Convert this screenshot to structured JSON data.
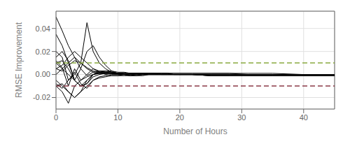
{
  "chart_data": {
    "type": "line",
    "xlabel": "Number of Hours",
    "ylabel": "RMSE Improvement",
    "xlim": [
      0,
      45
    ],
    "ylim": [
      -0.03,
      0.055
    ],
    "xticks": [
      0,
      10,
      20,
      30,
      40
    ],
    "yticks": [
      -0.02,
      {
        "value": 0,
        "label": "0.00"
      },
      0.02,
      0.04
    ],
    "grid": true,
    "hlines": [
      {
        "value": 0.01,
        "color": "#8aab40",
        "line_style": "dashed"
      },
      {
        "value": -0.01,
        "color": "#8b3a48",
        "line_style": "dashed"
      }
    ],
    "x": [
      0,
      1,
      2,
      3,
      4,
      5,
      6,
      7,
      8,
      9,
      10,
      11,
      12,
      13,
      14,
      15,
      16,
      17,
      18,
      19,
      20,
      22,
      25,
      28,
      31,
      35,
      40,
      45
    ],
    "series": [
      {
        "color": "#000000",
        "values": [
          0.05,
          0.038,
          0.025,
          0.015,
          0.005,
          -0.001,
          0.002,
          0.003,
          0.003,
          0.003,
          0.002,
          0.002,
          0.001,
          0.001,
          0.001,
          0.001,
          0.001,
          0.001,
          0.001,
          0.0,
          0.0,
          0.0,
          -0.001,
          -0.001,
          -0.001,
          -0.001,
          -0.001,
          -0.001
        ]
      },
      {
        "color": "#000000",
        "values": [
          0.035,
          0.025,
          0.01,
          -0.005,
          0.005,
          0.02,
          0.025,
          0.015,
          0.008,
          0.003,
          0.001,
          0.0,
          -0.001,
          -0.001,
          -0.001,
          0.0,
          0.0,
          0.0,
          0.0,
          0.0,
          0.0,
          0.0,
          -0.001,
          -0.001,
          -0.001,
          -0.001,
          -0.001,
          -0.001
        ]
      },
      {
        "color": "#000000",
        "values": [
          0.02,
          0.015,
          -0.005,
          0.0,
          0.01,
          0.045,
          0.02,
          0.01,
          0.005,
          0.002,
          0.001,
          0.0,
          -0.001,
          -0.001,
          0.0,
          0.0,
          0.0,
          0.0,
          0.0,
          0.0,
          0.0,
          0.0,
          -0.001,
          -0.001,
          -0.001,
          -0.001,
          -0.001,
          -0.001
        ]
      },
      {
        "color": "#000000",
        "values": [
          0.012,
          0.006,
          -0.01,
          0.005,
          -0.005,
          0.0,
          0.005,
          0.002,
          0.0,
          -0.001,
          -0.001,
          -0.001,
          -0.001,
          0.0,
          0.0,
          0.0,
          0.0,
          0.0,
          0.0,
          0.0,
          0.0,
          0.0,
          -0.001,
          -0.001,
          -0.001,
          -0.001,
          -0.001,
          -0.001
        ]
      },
      {
        "color": "#000000",
        "values": [
          0.01,
          0.005,
          0.0,
          -0.005,
          -0.01,
          -0.008,
          -0.002,
          0.0,
          0.001,
          0.001,
          0.001,
          0.001,
          0.001,
          0.001,
          0.001,
          0.001,
          0.001,
          0.001,
          0.001,
          0.0,
          0.0,
          0.0,
          0.0,
          0.0,
          0.0,
          0.0,
          0.0,
          0.0
        ]
      },
      {
        "color": "#000000",
        "values": [
          -0.005,
          -0.01,
          -0.015,
          -0.02,
          -0.015,
          -0.01,
          -0.005,
          -0.003,
          -0.002,
          -0.001,
          -0.001,
          0.0,
          0.0,
          0.0,
          0.0,
          0.0,
          0.0,
          0.0,
          0.0,
          0.0,
          0.0,
          0.0,
          0.0,
          0.0,
          0.0,
          0.0,
          0.0,
          0.0
        ]
      },
      {
        "color": "#000000",
        "values": [
          0.015,
          0.02,
          0.012,
          -0.005,
          -0.01,
          -0.005,
          0.0,
          0.003,
          0.003,
          0.002,
          0.001,
          0.0,
          0.0,
          0.0,
          0.0,
          0.0,
          0.0,
          0.0,
          0.0,
          0.0,
          0.0,
          0.0,
          0.0,
          0.0,
          0.0,
          0.0,
          0.0,
          0.0
        ]
      },
      {
        "color": "#000000",
        "values": [
          -0.01,
          -0.015,
          -0.025,
          -0.01,
          -0.005,
          -0.002,
          0.0,
          0.001,
          0.001,
          0.001,
          0.0,
          0.0,
          0.0,
          0.0,
          0.0,
          0.0,
          0.0,
          0.0,
          0.0,
          0.0,
          0.0,
          0.0,
          0.0,
          0.0,
          0.0,
          0.0,
          0.0,
          0.0
        ]
      },
      {
        "color": "#000000",
        "values": [
          0.0,
          0.005,
          0.01,
          0.015,
          0.01,
          0.005,
          0.002,
          0.001,
          0.001,
          0.001,
          0.001,
          0.001,
          0.001,
          0.001,
          0.001,
          0.001,
          0.001,
          0.0,
          0.0,
          0.0,
          0.0,
          0.0,
          0.0,
          0.0,
          0.0,
          0.0,
          0.0,
          0.0
        ]
      },
      {
        "color": "#000000",
        "values": [
          0.005,
          0.008,
          0.015,
          0.02,
          0.015,
          0.01,
          0.005,
          0.003,
          0.002,
          0.001,
          0.0,
          0.0,
          0.0,
          0.0,
          0.0,
          0.0,
          0.0,
          0.0,
          0.0,
          0.0,
          0.0,
          0.0,
          0.0,
          0.0,
          0.0,
          0.0,
          0.0,
          0.0
        ]
      },
      {
        "color": "#000000",
        "values": [
          0.01,
          0.012,
          0.005,
          -0.005,
          -0.01,
          -0.008,
          0.0,
          0.002,
          0.002,
          0.001,
          0.001,
          0.001,
          0.001,
          0.001,
          0.001,
          0.001,
          0.001,
          0.001,
          0.001,
          0.001,
          0.001,
          0.001,
          0.001,
          0.001,
          0.0,
          0.0,
          0.0,
          0.0
        ]
      },
      {
        "color": "#000000",
        "values": [
          -0.01,
          -0.008,
          -0.015,
          -0.02,
          -0.015,
          -0.005,
          0.0,
          0.001,
          0.001,
          0.001,
          0.0,
          0.0,
          0.0,
          0.0,
          0.0,
          0.0,
          0.0,
          0.0,
          0.0,
          0.0,
          0.0,
          0.0,
          0.0,
          0.0,
          0.0,
          0.0,
          0.0,
          0.0
        ]
      },
      {
        "color": "#000000",
        "values": [
          0.005,
          0.003,
          0.008,
          0.012,
          0.01,
          0.006,
          0.003,
          0.002,
          0.002,
          0.002,
          0.001,
          0.001,
          0.001,
          0.001,
          0.001,
          0.001,
          0.001,
          0.001,
          0.001,
          0.001,
          0.001,
          0.001,
          0.001,
          0.001,
          0.001,
          0.001,
          0.0,
          0.0
        ]
      },
      {
        "color": "#000000",
        "values": [
          -0.008,
          -0.012,
          -0.005,
          0.002,
          -0.008,
          -0.012,
          -0.005,
          -0.002,
          -0.001,
          0.0,
          0.0,
          0.0,
          0.0,
          0.0,
          0.0,
          0.0,
          0.0,
          0.0,
          0.0,
          0.0,
          0.0,
          0.0,
          0.0,
          0.0,
          0.0,
          0.0,
          0.0,
          0.0
        ]
      }
    ]
  }
}
